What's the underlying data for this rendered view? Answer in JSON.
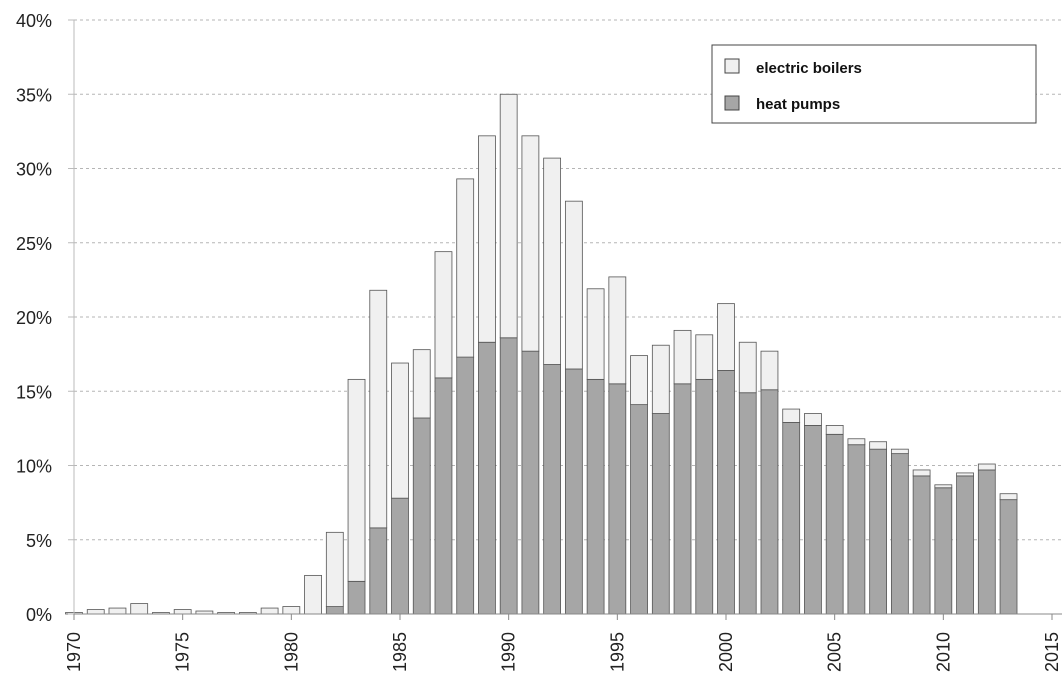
{
  "chart_data": {
    "type": "bar",
    "stacked": true,
    "x": [
      1970,
      1971,
      1972,
      1973,
      1974,
      1975,
      1976,
      1977,
      1978,
      1979,
      1980,
      1981,
      1982,
      1983,
      1984,
      1985,
      1986,
      1987,
      1988,
      1989,
      1990,
      1991,
      1992,
      1993,
      1994,
      1995,
      1996,
      1997,
      1998,
      1999,
      2000,
      2001,
      2002,
      2003,
      2004,
      2005,
      2006,
      2007,
      2008,
      2009,
      2010,
      2011,
      2012,
      2013
    ],
    "xlim": [
      1970,
      2015
    ],
    "x_ticks": [
      "1970",
      "1975",
      "1980",
      "1985",
      "1990",
      "1995",
      "2000",
      "2005",
      "2010",
      "2015"
    ],
    "ylim": [
      0,
      40
    ],
    "y_ticks": [
      "0%",
      "5%",
      "10%",
      "15%",
      "20%",
      "25%",
      "30%",
      "35%",
      "40%"
    ],
    "grid": "horizontal dashed",
    "legend_position": "top-right",
    "series": [
      {
        "name": "heat pumps",
        "color": "#a6a6a6",
        "values": [
          0,
          0,
          0,
          0,
          0,
          0,
          0,
          0,
          0,
          0,
          0,
          0,
          0.5,
          2.2,
          5.8,
          7.8,
          13.2,
          15.9,
          17.3,
          18.3,
          18.6,
          17.7,
          16.8,
          16.5,
          15.8,
          15.5,
          14.1,
          13.5,
          15.5,
          15.8,
          16.4,
          14.9,
          15.1,
          12.9,
          12.7,
          12.1,
          11.4,
          11.1,
          10.8,
          9.3,
          8.5,
          9.3,
          9.7,
          7.7
        ]
      },
      {
        "name": "electric boilers",
        "color": "#f0f0f0",
        "values": [
          0.1,
          0.3,
          0.4,
          0.7,
          0.1,
          0.3,
          0.2,
          0.1,
          0.1,
          0.4,
          0.5,
          2.6,
          5.0,
          13.6,
          16.0,
          9.1,
          4.6,
          8.5,
          12.0,
          13.9,
          16.4,
          14.5,
          13.9,
          11.3,
          6.1,
          7.2,
          3.3,
          4.6,
          3.6,
          3.0,
          4.5,
          3.4,
          2.6,
          0.9,
          0.8,
          0.6,
          0.4,
          0.5,
          0.3,
          0.4,
          0.2,
          0.2,
          0.4,
          0.4
        ]
      }
    ]
  },
  "legend": {
    "items": [
      {
        "label": "electric boilers",
        "color": "#f0f0f0"
      },
      {
        "label": "heat pumps",
        "color": "#a6a6a6"
      }
    ]
  }
}
